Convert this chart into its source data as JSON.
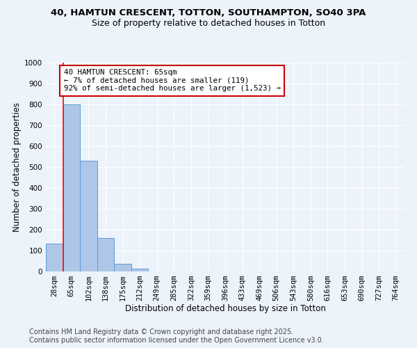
{
  "title_line1": "40, HAMTUN CRESCENT, TOTTON, SOUTHAMPTON, SO40 3PA",
  "title_line2": "Size of property relative to detached houses in Totton",
  "xlabel": "Distribution of detached houses by size in Totton",
  "ylabel": "Number of detached properties",
  "categories": [
    "28sqm",
    "65sqm",
    "102sqm",
    "138sqm",
    "175sqm",
    "212sqm",
    "249sqm",
    "285sqm",
    "322sqm",
    "359sqm",
    "396sqm",
    "433sqm",
    "469sqm",
    "506sqm",
    "543sqm",
    "580sqm",
    "616sqm",
    "653sqm",
    "690sqm",
    "727sqm",
    "764sqm"
  ],
  "values": [
    135,
    800,
    530,
    160,
    38,
    12,
    0,
    0,
    0,
    0,
    0,
    0,
    0,
    0,
    0,
    0,
    0,
    0,
    0,
    0,
    0
  ],
  "bar_color": "#aec6e8",
  "bar_edge_color": "#5b9bd5",
  "red_line_index": 1,
  "annotation_text": "40 HAMTUN CRESCENT: 65sqm\n← 7% of detached houses are smaller (119)\n92% of semi-detached houses are larger (1,523) →",
  "annotation_box_color": "#ffffff",
  "annotation_box_edge_color": "#cc0000",
  "ylim": [
    0,
    1000
  ],
  "yticks": [
    0,
    100,
    200,
    300,
    400,
    500,
    600,
    700,
    800,
    900,
    1000
  ],
  "footer_line1": "Contains HM Land Registry data © Crown copyright and database right 2025.",
  "footer_line2": "Contains public sector information licensed under the Open Government Licence v3.0.",
  "bg_color": "#edf3fb",
  "plot_bg_color": "#edf3fb",
  "grid_color": "#ffffff",
  "title1_fontsize": 9.5,
  "title2_fontsize": 9,
  "axis_label_fontsize": 8.5,
  "tick_fontsize": 7.5,
  "annotation_fontsize": 7.8,
  "footer_fontsize": 7
}
